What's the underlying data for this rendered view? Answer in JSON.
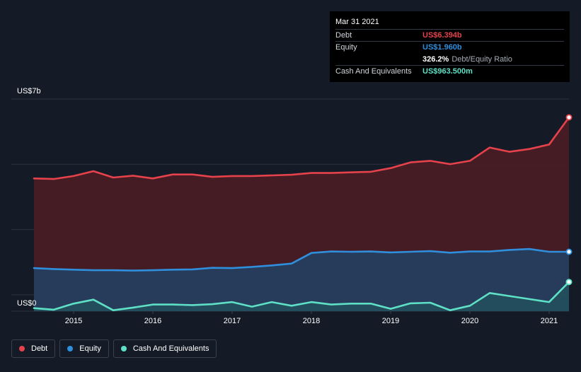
{
  "chart_data": {
    "type": "area",
    "y_axis_labels": [
      "US$7b",
      "US$0"
    ],
    "ylim": [
      0,
      7.0
    ],
    "xlim": [
      2014.5,
      2021.25
    ],
    "x_ticks": [
      2015,
      2016,
      2017,
      2018,
      2019,
      2020,
      2021
    ],
    "x_tick_labels": [
      "2015",
      "2016",
      "2017",
      "2018",
      "2019",
      "2020",
      "2021"
    ],
    "grid": true,
    "series": [
      {
        "name": "Debt",
        "color": "#e5424b",
        "fill": "#4a1d24",
        "x": [
          2014.5,
          2014.75,
          2015.0,
          2015.25,
          2015.5,
          2015.75,
          2016.0,
          2016.25,
          2016.5,
          2016.75,
          2017.0,
          2017.25,
          2017.5,
          2017.75,
          2018.0,
          2018.25,
          2018.5,
          2018.75,
          2019.0,
          2019.25,
          2019.5,
          2019.75,
          2020.0,
          2020.25,
          2020.5,
          2020.75,
          2021.0,
          2021.25
        ],
        "values": [
          4.38,
          4.36,
          4.46,
          4.62,
          4.41,
          4.47,
          4.38,
          4.51,
          4.51,
          4.43,
          4.46,
          4.46,
          4.48,
          4.5,
          4.56,
          4.56,
          4.58,
          4.6,
          4.72,
          4.91,
          4.96,
          4.85,
          4.96,
          5.4,
          5.26,
          5.35,
          5.5,
          6.394
        ]
      },
      {
        "name": "Equity",
        "color": "#2f8fdd",
        "fill": "#233f61",
        "x": [
          2014.5,
          2014.75,
          2015.0,
          2015.25,
          2015.5,
          2015.75,
          2016.0,
          2016.25,
          2016.5,
          2016.75,
          2017.0,
          2017.25,
          2017.5,
          2017.75,
          2018.0,
          2018.25,
          2018.5,
          2018.75,
          2019.0,
          2019.25,
          2019.5,
          2019.75,
          2020.0,
          2020.25,
          2020.5,
          2020.75,
          2021.0,
          2021.25
        ],
        "values": [
          1.42,
          1.39,
          1.37,
          1.35,
          1.35,
          1.34,
          1.35,
          1.37,
          1.38,
          1.43,
          1.42,
          1.46,
          1.51,
          1.57,
          1.92,
          1.97,
          1.96,
          1.97,
          1.94,
          1.96,
          1.98,
          1.93,
          1.97,
          1.97,
          2.02,
          2.05,
          1.96,
          1.96
        ]
      },
      {
        "name": "Cash And Equivalents",
        "color": "#5ee0c6",
        "fill": "#24505c",
        "x": [
          2014.5,
          2014.75,
          2015.0,
          2015.25,
          2015.5,
          2015.75,
          2016.0,
          2016.25,
          2016.5,
          2016.75,
          2017.0,
          2017.25,
          2017.5,
          2017.75,
          2018.0,
          2018.25,
          2018.5,
          2018.75,
          2019.0,
          2019.25,
          2019.5,
          2019.75,
          2020.0,
          2020.25,
          2020.5,
          2020.75,
          2021.0,
          2021.25
        ],
        "values": [
          0.1,
          0.05,
          0.25,
          0.38,
          0.03,
          0.12,
          0.22,
          0.22,
          0.2,
          0.23,
          0.3,
          0.15,
          0.3,
          0.18,
          0.3,
          0.22,
          0.25,
          0.25,
          0.08,
          0.26,
          0.28,
          0.03,
          0.18,
          0.6,
          0.5,
          0.4,
          0.3,
          0.9635
        ]
      }
    ]
  },
  "tooltip": {
    "date": "Mar 31 2021",
    "debt_label": "Debt",
    "debt_value": "US$6.394b",
    "equity_label": "Equity",
    "equity_value": "US$1.960b",
    "ratio_value": "326.2%",
    "ratio_label": "Debt/Equity Ratio",
    "cash_label": "Cash And Equivalents",
    "cash_value": "US$963.500m"
  },
  "legend": [
    {
      "label": "Debt",
      "color": "#e5424b"
    },
    {
      "label": "Equity",
      "color": "#2f8fdd"
    },
    {
      "label": "Cash And Equivalents",
      "color": "#5ee0c6"
    }
  ]
}
